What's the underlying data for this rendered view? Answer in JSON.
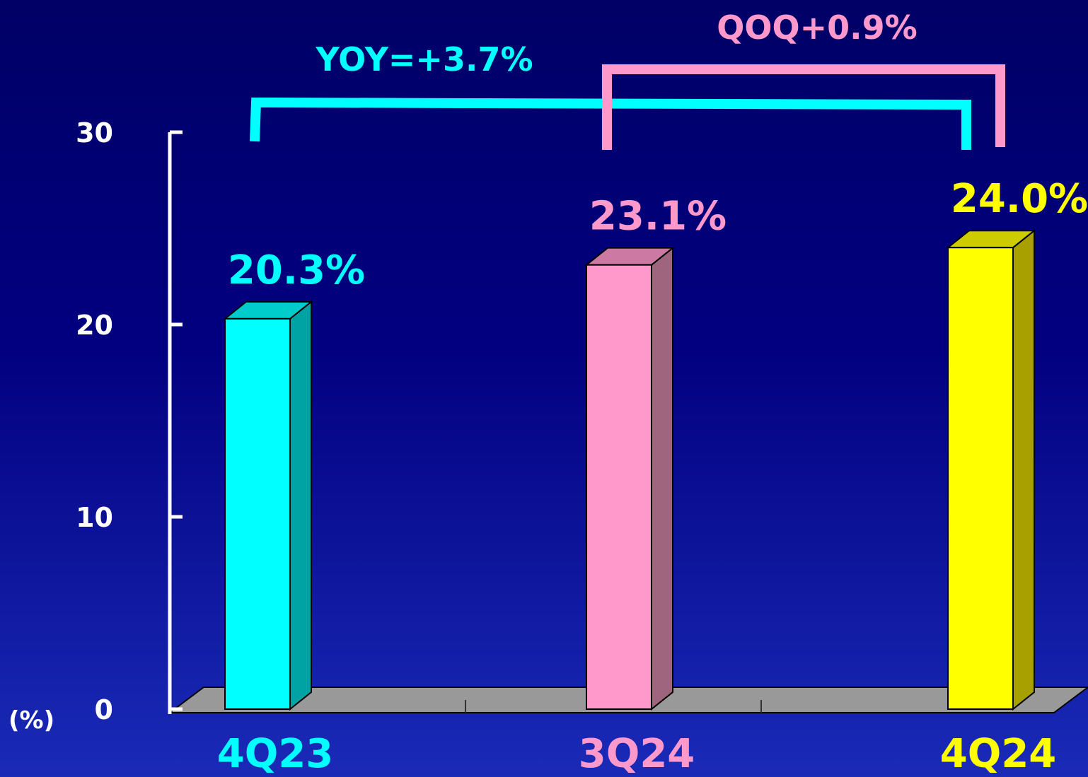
{
  "chart_data": {
    "type": "bar",
    "categories": [
      "4Q23",
      "3Q24",
      "4Q24"
    ],
    "values": [
      20.3,
      23.1,
      24.0
    ],
    "value_labels": [
      "20.3%",
      "23.1%",
      "24.0%"
    ],
    "ylim": [
      0,
      30
    ],
    "yticks": [
      "0",
      "10",
      "20",
      "30"
    ],
    "ylabel": "(%)",
    "grid": false,
    "style": "3d-bar",
    "annotations": [
      {
        "text": "YOY=+3.7%",
        "from": "4Q23",
        "to": "4Q24"
      },
      {
        "text": "QOQ+0.9%",
        "from": "3Q24",
        "to": "4Q24"
      }
    ]
  },
  "colors": {
    "background_top": "#000066",
    "background_bottom": "#1a2bb8",
    "bar_fronts": [
      "#00ffff",
      "#ff99cc",
      "#ffff00"
    ],
    "bar_sides": [
      "#00a3a3",
      "#a0657e",
      "#a8a000"
    ],
    "bar_tops": [
      "#00cccc",
      "#cc7aa3",
      "#cccc00"
    ],
    "category_label_colors": [
      "#00ffff",
      "#ff99cc",
      "#ffff00"
    ],
    "value_label_colors": [
      "#00ffff",
      "#ff99cc",
      "#ffff00"
    ],
    "yoy_bracket": "#00ffff",
    "qoq_bracket": "#ff99cc",
    "floor": "#999999",
    "axis": "#ffffff",
    "tick_text": "#ffffff"
  }
}
